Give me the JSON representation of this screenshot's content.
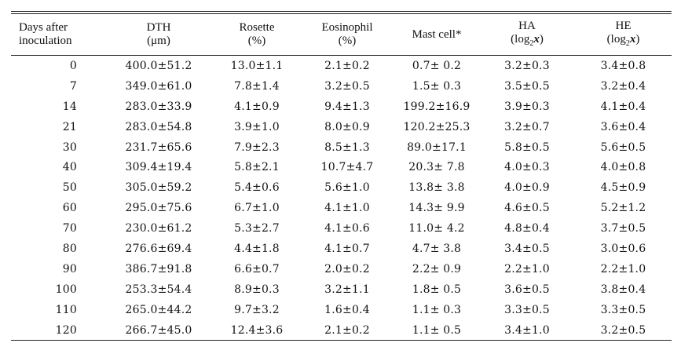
{
  "table": {
    "headers": [
      {
        "line1": "Days after",
        "line2": "inoculation"
      },
      {
        "line1": "DTH",
        "line2": "(μm)"
      },
      {
        "line1": "Rosette",
        "line2": "(%)"
      },
      {
        "line1": "Eosinophil",
        "line2": "(%)"
      },
      {
        "line1": "Mast cell*",
        "line2": ""
      },
      {
        "line1": "HA",
        "line2_pre": "(log",
        "line2_sub": "2",
        "line2_var": "x",
        "line2_post": ")"
      },
      {
        "line1": "HE",
        "line2_pre": "(log",
        "line2_sub": "2",
        "line2_var": "x",
        "line2_post": ")"
      }
    ],
    "rows": [
      [
        "0",
        "400.0±51.2",
        "13.0±1.1",
        "2.1±0.2",
        "0.7± 0.2",
        "3.2±0.3",
        "3.4±0.8"
      ],
      [
        "7",
        "349.0±61.0",
        "7.8±1.4",
        "3.2±0.5",
        "1.5± 0.3",
        "3.5±0.5",
        "3.2±0.4"
      ],
      [
        "14",
        "283.0±33.9",
        "4.1±0.9",
        "9.4±1.3",
        "199.2±16.9",
        "3.9±0.3",
        "4.1±0.4"
      ],
      [
        "21",
        "283.0±54.8",
        "3.9±1.0",
        "8.0±0.9",
        "120.2±25.3",
        "3.2±0.7",
        "3.6±0.4"
      ],
      [
        "30",
        "231.7±65.6",
        "7.9±2.3",
        "8.5±1.3",
        "89.0±17.1",
        "5.8±0.5",
        "5.6±0.5"
      ],
      [
        "40",
        "309.4±19.4",
        "5.8±2.1",
        "10.7±4.7",
        "20.3± 7.8",
        "4.0±0.3",
        "4.0±0.8"
      ],
      [
        "50",
        "305.0±59.2",
        "5.4±0.6",
        "5.6±1.0",
        "13.8± 3.8",
        "4.0±0.9",
        "4.5±0.9"
      ],
      [
        "60",
        "295.0±75.6",
        "6.7±1.0",
        "4.1±1.0",
        "14.3± 9.9",
        "4.6±0.5",
        "5.2±1.2"
      ],
      [
        "70",
        "230.0±61.2",
        "5.3±2.7",
        "4.1±0.6",
        "11.0± 4.2",
        "4.8±0.4",
        "3.7±0.5"
      ],
      [
        "80",
        "276.6±69.4",
        "4.4±1.8",
        "4.1±0.7",
        "4.7± 3.8",
        "3.4±0.5",
        "3.0±0.6"
      ],
      [
        "90",
        "386.7±91.8",
        "6.6±0.7",
        "2.0±0.2",
        "2.2± 0.9",
        "2.2±1.0",
        "2.2±1.0"
      ],
      [
        "100",
        "253.3±54.4",
        "8.9±0.3",
        "3.2±1.1",
        "1.8± 0.5",
        "3.6±0.5",
        "3.8±0.4"
      ],
      [
        "110",
        "265.0±44.2",
        "9.7±3.2",
        "1.6±0.4",
        "1.1± 0.3",
        "3.3±0.5",
        "3.3±0.5"
      ],
      [
        "120",
        "266.7±45.0",
        "12.4±3.6",
        "2.1±0.2",
        "1.1± 0.5",
        "3.4±1.0",
        "3.2±0.5"
      ]
    ]
  }
}
